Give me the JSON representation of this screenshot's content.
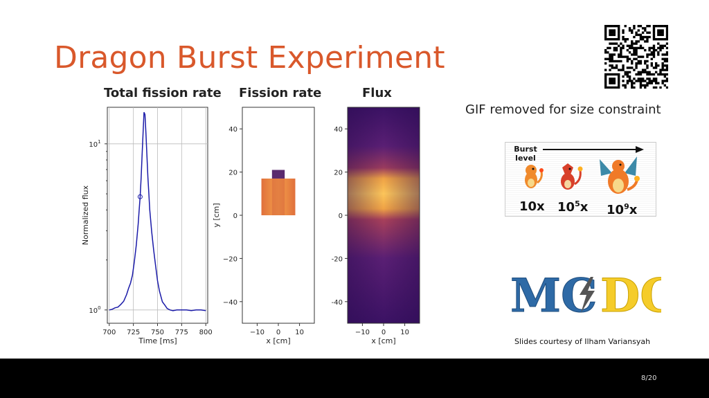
{
  "slide": {
    "title": "Dragon Burst Experiment",
    "page_number": "8/20",
    "credit": "Slides courtesy of Ilham Variansyah",
    "gif_note": "GIF removed for size constraint",
    "burst": {
      "level_label": "Burst level",
      "stages": [
        "10x",
        "10",
        "10"
      ],
      "stage_exponents": [
        "",
        "5",
        "9"
      ],
      "stage_suffix": [
        "",
        "x",
        "x"
      ]
    },
    "logo": {
      "left": "MC",
      "right": "DC"
    },
    "colors": {
      "title": "#d9582b",
      "curve": "#1a1aa8",
      "footer": "#000000"
    }
  },
  "chart_data": [
    {
      "type": "line",
      "title": "Total fission rate",
      "xlabel": "Time [ms]",
      "ylabel": "Normalized flux",
      "xlim": [
        698,
        802
      ],
      "ylim_log10": [
        -0.08,
        1.22
      ],
      "yscale": "log",
      "x_ticks": [
        "700",
        "725",
        "750",
        "775",
        "800"
      ],
      "y_ticks": [
        "10",
        "10"
      ],
      "y_tick_exponents": [
        "0",
        "1"
      ],
      "grid": true,
      "marker": {
        "x": 732,
        "y": 4.8
      },
      "series": [
        {
          "x": [
            700,
            703,
            706,
            709,
            712,
            715,
            718,
            720,
            722,
            724,
            726,
            728,
            730,
            731,
            732,
            733,
            734,
            735,
            736,
            737,
            738,
            739,
            740,
            741,
            742,
            744,
            746,
            748,
            750,
            752,
            755,
            758,
            760,
            763,
            766,
            770,
            775,
            780,
            785,
            790,
            795,
            800
          ],
          "y": [
            1.0,
            1.01,
            1.03,
            1.04,
            1.08,
            1.13,
            1.24,
            1.35,
            1.45,
            1.62,
            1.95,
            2.45,
            3.3,
            4.0,
            4.8,
            6.2,
            8.5,
            11.5,
            15.5,
            15.0,
            11.5,
            8.5,
            6.3,
            5.0,
            4.0,
            2.95,
            2.3,
            1.85,
            1.5,
            1.3,
            1.12,
            1.06,
            1.02,
            1.0,
            0.99,
            1.0,
            1.0,
            1.0,
            0.99,
            1.0,
            1.0,
            0.99
          ]
        }
      ]
    },
    {
      "type": "heatmap",
      "title": "Fission rate",
      "xlabel": "x [cm]",
      "ylabel": "y [cm]",
      "xlim": [
        -17,
        17
      ],
      "ylim": [
        -50,
        50
      ],
      "x_ticks": [
        "−10",
        "0",
        "10"
      ],
      "y_ticks": [
        "40",
        "20",
        "0",
        "−20",
        "−40"
      ],
      "regions": [
        {
          "name": "core",
          "x": [
            -8,
            8
          ],
          "y": [
            0,
            17
          ]
        },
        {
          "name": "top",
          "x": [
            -3,
            3
          ],
          "y": [
            17,
            21
          ]
        }
      ]
    },
    {
      "type": "heatmap",
      "title": "Flux",
      "xlabel": "x [cm]",
      "ylabel": "",
      "xlim": [
        -17,
        17
      ],
      "ylim": [
        -50,
        50
      ],
      "x_ticks": [
        "−10",
        "0",
        "10"
      ],
      "y_ticks": [
        "40",
        "20",
        "0",
        "-20",
        "-40"
      ]
    }
  ]
}
